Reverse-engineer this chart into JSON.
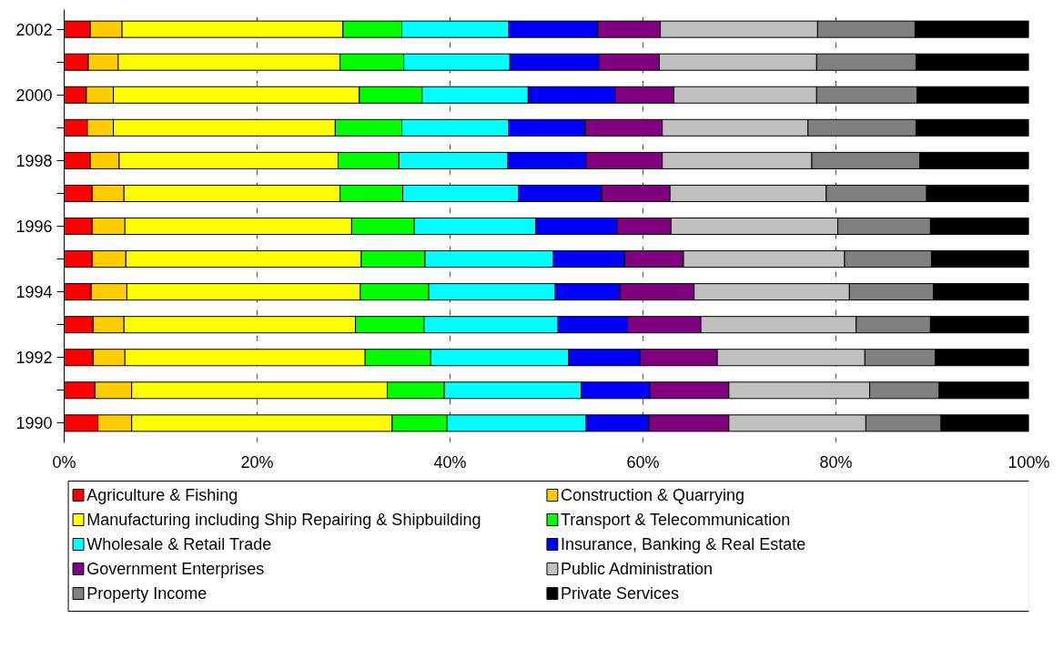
{
  "chart_data": {
    "type": "bar",
    "orientation": "horizontal",
    "stacked": true,
    "categories": [
      "2002",
      null,
      "2000",
      null,
      "1998",
      null,
      "1996",
      null,
      "1994",
      null,
      "1992",
      null,
      "1990"
    ],
    "xlim": [
      0,
      100
    ],
    "xticks": [
      {
        "value": 0,
        "label": "0%"
      },
      {
        "value": 20,
        "label": "20%"
      },
      {
        "value": 40,
        "label": "40%"
      },
      {
        "value": 60,
        "label": "60%"
      },
      {
        "value": 80,
        "label": "80%"
      },
      {
        "value": 100,
        "label": "100%"
      }
    ],
    "grid": "x",
    "legend": "bottom",
    "series": [
      {
        "name": "Agriculture & Fishing",
        "color": "#ff0000",
        "values": [
          2.7,
          2.5,
          2.3,
          2.4,
          2.7,
          2.9,
          2.9,
          2.9,
          2.8,
          3.0,
          3.0,
          3.2,
          3.5
        ]
      },
      {
        "name": "Construction & Quarrying",
        "color": "#ffcc00",
        "values": [
          3.3,
          3.1,
          2.8,
          2.7,
          3.0,
          3.3,
          3.4,
          3.5,
          3.7,
          3.2,
          3.3,
          3.8,
          3.5
        ]
      },
      {
        "name": "Manufacturing including Ship Repairing & Shipbuilding",
        "color": "#ffff00",
        "values": [
          22.9,
          23.0,
          25.5,
          23.0,
          22.7,
          22.4,
          23.5,
          24.4,
          24.2,
          24.0,
          24.9,
          26.5,
          27.0
        ]
      },
      {
        "name": "Transport & Telecommunication",
        "color": "#00ff00",
        "values": [
          6.1,
          6.6,
          6.5,
          6.9,
          6.3,
          6.5,
          6.5,
          6.6,
          7.1,
          7.1,
          6.8,
          5.9,
          5.7
        ]
      },
      {
        "name": "Wholesale & Retail Trade",
        "color": "#00ffff",
        "values": [
          11.1,
          11.0,
          11.0,
          11.1,
          11.3,
          12.0,
          12.6,
          13.3,
          13.1,
          13.9,
          14.3,
          14.2,
          14.4
        ]
      },
      {
        "name": "Insurance, Banking & Real Estate",
        "color": "#0000ff",
        "values": [
          9.2,
          9.2,
          9.0,
          7.9,
          8.1,
          8.6,
          8.4,
          7.4,
          6.7,
          7.2,
          7.4,
          7.1,
          6.5
        ]
      },
      {
        "name": "Government Enterprises",
        "color": "#800080",
        "values": [
          6.5,
          6.3,
          6.1,
          8.0,
          7.9,
          7.1,
          5.6,
          6.1,
          7.7,
          7.6,
          8.0,
          8.2,
          8.3
        ]
      },
      {
        "name": "Public Administration",
        "color": "#c0c0c0",
        "values": [
          16.3,
          16.3,
          14.8,
          15.1,
          15.5,
          16.2,
          17.3,
          16.7,
          16.1,
          16.1,
          15.3,
          14.6,
          14.2
        ]
      },
      {
        "name": "Property Income",
        "color": "#808080",
        "values": [
          10.1,
          10.3,
          10.4,
          11.2,
          11.2,
          10.4,
          9.6,
          9.0,
          8.7,
          7.7,
          7.3,
          7.2,
          7.8
        ]
      },
      {
        "name": "Private Services",
        "color": "#000000",
        "values": [
          11.8,
          11.7,
          11.6,
          11.7,
          11.3,
          10.6,
          10.2,
          10.1,
          9.9,
          10.2,
          9.7,
          9.3,
          9.1
        ]
      }
    ]
  }
}
